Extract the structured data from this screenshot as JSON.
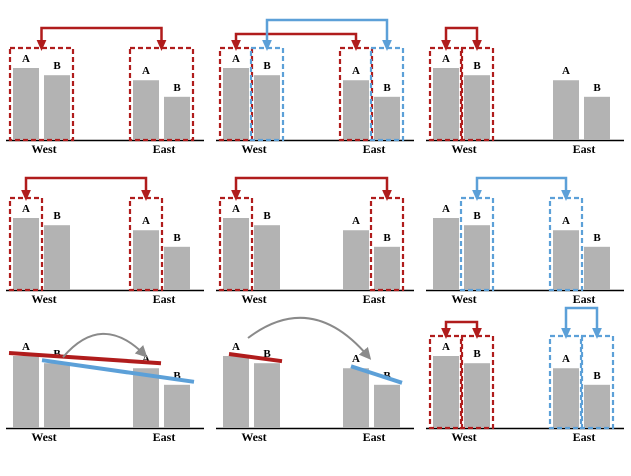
{
  "colors": {
    "bar": "#b3b3b3",
    "red": "#b01c1c",
    "blue": "#5ca0d8",
    "gray_arrow": "#8a8a8a",
    "axis": "#000000"
  },
  "labels": {
    "a": "A",
    "b": "B",
    "west": "West",
    "east": "East"
  },
  "chart_data": {
    "type": "bar",
    "categories": [
      "West",
      "East"
    ],
    "series": [
      {
        "name": "A",
        "values": [
          1.0,
          0.83
        ]
      },
      {
        "name": "B",
        "values": [
          0.9,
          0.6
        ]
      }
    ]
  },
  "panels": [
    {
      "id": "p1",
      "boxes": [
        "red:W",
        "red:E"
      ],
      "links": [
        "red:W-E"
      ],
      "marks": []
    },
    {
      "id": "p2",
      "boxes": [
        "red:WA",
        "blue:WB",
        "red:EA",
        "blue:EB"
      ],
      "links": [
        "red:WA-EA",
        "blue:WB-EB"
      ],
      "marks": []
    },
    {
      "id": "p3",
      "boxes": [
        "red:WA",
        "red:WB"
      ],
      "links": [
        "red:WA-WB"
      ],
      "marks": []
    },
    {
      "id": "p4",
      "boxes": [
        "red:WA",
        "red:EA"
      ],
      "links": [
        "red:WA-EA"
      ],
      "marks": []
    },
    {
      "id": "p5",
      "boxes": [
        "red:WA",
        "red:EB"
      ],
      "links": [
        "red:WA-EB"
      ],
      "marks": []
    },
    {
      "id": "p6",
      "boxes": [
        "blue:WB",
        "blue:EA"
      ],
      "links": [
        "blue:WB-EA"
      ],
      "marks": []
    },
    {
      "id": "p7",
      "boxes": [],
      "links": [],
      "marks": [
        "red-slope-west-a-to-east-a",
        "blue-slope-west-b-to-east-b",
        "gray-arrow-west-b-to-east-a"
      ]
    },
    {
      "id": "p8",
      "boxes": [],
      "links": [],
      "marks": [
        "red-slope-west",
        "blue-slope-east",
        "gray-arrow-west-to-east"
      ]
    },
    {
      "id": "p9",
      "boxes": [
        "red:WA",
        "red:WB",
        "blue:EA",
        "blue:EB"
      ],
      "links": [
        "red:WA-WB",
        "blue:EA-EB"
      ],
      "marks": []
    }
  ]
}
